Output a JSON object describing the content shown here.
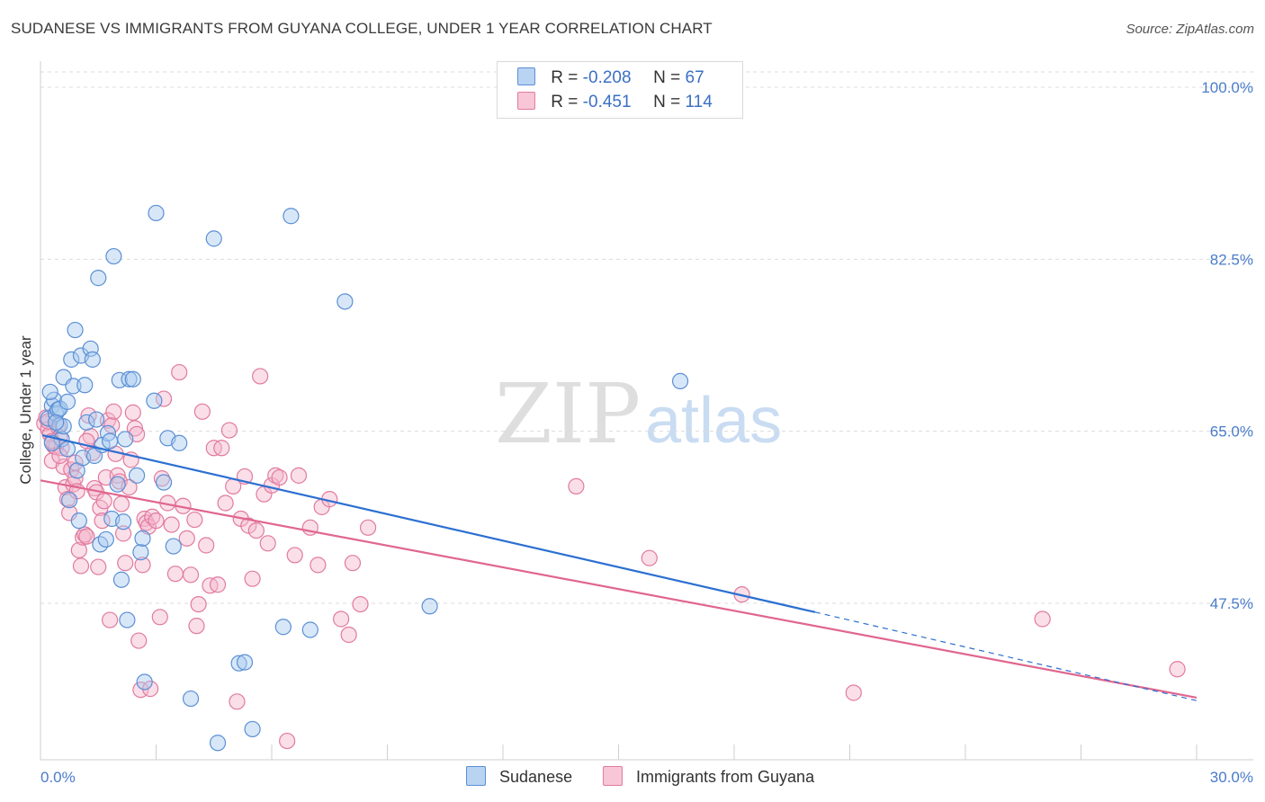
{
  "header": {
    "title": "SUDANESE VS IMMIGRANTS FROM GUYANA COLLEGE, UNDER 1 YEAR CORRELATION CHART",
    "source": "Source: ZipAtlas.com"
  },
  "legend": {
    "rows": [
      {
        "r_label": "R =",
        "r_value": "-0.208",
        "n_label": "N =",
        "n_value": "67"
      },
      {
        "r_label": "R =",
        "r_value": "-0.451",
        "n_label": "N =",
        "n_value": "114"
      }
    ]
  },
  "watermark": {
    "zip": "ZIP",
    "atlas": "atlas"
  },
  "colors": {
    "sudanese_fill": "#a9c9ee",
    "sudanese_stroke": "#5b8fd6",
    "sudanese_line": "#2b6fd1",
    "guyana_fill": "#f5b8cc",
    "guyana_stroke": "#e17aa0",
    "guyana_line": "#e0668f",
    "tick_text": "#4a7cc9",
    "grid": "#dcdcdc"
  },
  "chart_data": {
    "type": "scatter",
    "title": "SUDANESE VS IMMIGRANTS FROM GUYANA COLLEGE, UNDER 1 YEAR CORRELATION CHART",
    "xlabel": "",
    "ylabel": "College, Under 1 year",
    "xlim": [
      0,
      30
    ],
    "ylim": [
      30,
      100
    ],
    "x_tick_labels": [
      "0.0%",
      "30.0%"
    ],
    "y_tick_values": [
      47.5,
      65.0,
      82.5,
      100.0
    ],
    "y_tick_labels": [
      "47.5%",
      "65.0%",
      "82.5%",
      "100.0%"
    ],
    "grid": true,
    "legend_placement": "bottom",
    "series": [
      {
        "name": "Sudanese",
        "r": -0.208,
        "n": 67,
        "trend": {
          "x0": 0.05,
          "y0": 64.6,
          "x1": 20.1,
          "y1": 46.6,
          "dashed_to_x": 30.0,
          "dashed_to_y": 37.6
        },
        "points": [
          [
            0.2,
            66.3
          ],
          [
            0.3,
            67.6
          ],
          [
            0.35,
            68.2
          ],
          [
            0.4,
            66.8
          ],
          [
            0.45,
            67.2
          ],
          [
            0.5,
            67.3
          ],
          [
            0.6,
            70.5
          ],
          [
            0.7,
            68.0
          ],
          [
            0.5,
            65.6
          ],
          [
            0.55,
            64.2
          ],
          [
            0.25,
            69.0
          ],
          [
            0.3,
            63.8
          ],
          [
            0.6,
            65.5
          ],
          [
            0.7,
            63.2
          ],
          [
            0.75,
            58.0
          ],
          [
            0.8,
            72.3
          ],
          [
            0.85,
            69.6
          ],
          [
            0.9,
            75.3
          ],
          [
            0.95,
            61.0
          ],
          [
            1.0,
            55.9
          ],
          [
            1.05,
            72.7
          ],
          [
            1.1,
            62.3
          ],
          [
            1.15,
            69.7
          ],
          [
            1.2,
            65.9
          ],
          [
            1.3,
            73.4
          ],
          [
            1.35,
            72.3
          ],
          [
            1.4,
            62.5
          ],
          [
            1.45,
            66.2
          ],
          [
            1.5,
            80.6
          ],
          [
            1.55,
            53.5
          ],
          [
            1.6,
            63.6
          ],
          [
            1.7,
            54.0
          ],
          [
            1.75,
            64.8
          ],
          [
            1.8,
            64.0
          ],
          [
            1.85,
            56.1
          ],
          [
            1.9,
            82.8
          ],
          [
            2.0,
            59.6
          ],
          [
            2.05,
            70.2
          ],
          [
            2.1,
            49.9
          ],
          [
            2.15,
            55.8
          ],
          [
            2.2,
            64.2
          ],
          [
            2.25,
            45.8
          ],
          [
            2.3,
            70.3
          ],
          [
            2.4,
            70.3
          ],
          [
            2.5,
            60.5
          ],
          [
            2.6,
            52.7
          ],
          [
            2.65,
            54.1
          ],
          [
            2.7,
            39.5
          ],
          [
            2.95,
            68.1
          ],
          [
            3.0,
            87.2
          ],
          [
            3.2,
            59.8
          ],
          [
            3.3,
            64.3
          ],
          [
            3.45,
            53.3
          ],
          [
            3.6,
            63.8
          ],
          [
            3.9,
            37.8
          ],
          [
            4.5,
            84.6
          ],
          [
            4.6,
            33.3
          ],
          [
            5.15,
            41.4
          ],
          [
            5.3,
            41.5
          ],
          [
            5.5,
            34.7
          ],
          [
            6.3,
            45.1
          ],
          [
            6.5,
            86.9
          ],
          [
            7.0,
            44.8
          ],
          [
            7.9,
            78.2
          ],
          [
            10.1,
            47.2
          ],
          [
            16.6,
            70.1
          ],
          [
            0.4,
            65.9
          ]
        ]
      },
      {
        "name": "Immigrants from Guyana",
        "r": -0.451,
        "n": 114,
        "trend": {
          "x0": 0.0,
          "y0": 60.0,
          "x1": 30.0,
          "y1": 37.9
        },
        "points": [
          [
            0.1,
            65.8
          ],
          [
            0.15,
            66.4
          ],
          [
            0.2,
            65.2
          ],
          [
            0.25,
            64.7
          ],
          [
            0.3,
            62.0
          ],
          [
            0.35,
            63.5
          ],
          [
            0.4,
            63.4
          ],
          [
            0.45,
            65.5
          ],
          [
            0.5,
            64.4
          ],
          [
            0.55,
            63.3
          ],
          [
            0.6,
            61.4
          ],
          [
            0.65,
            59.3
          ],
          [
            0.7,
            58.1
          ],
          [
            0.75,
            56.7
          ],
          [
            0.8,
            61.1
          ],
          [
            0.85,
            59.6
          ],
          [
            0.9,
            60.2
          ],
          [
            0.95,
            58.9
          ],
          [
            1.0,
            52.9
          ],
          [
            1.05,
            51.3
          ],
          [
            1.1,
            54.2
          ],
          [
            1.15,
            54.5
          ],
          [
            1.2,
            54.3
          ],
          [
            1.25,
            66.6
          ],
          [
            1.3,
            64.5
          ],
          [
            1.35,
            62.8
          ],
          [
            1.4,
            59.2
          ],
          [
            1.45,
            58.8
          ],
          [
            1.5,
            51.2
          ],
          [
            1.55,
            57.2
          ],
          [
            1.6,
            55.9
          ],
          [
            1.65,
            57.9
          ],
          [
            1.7,
            60.3
          ],
          [
            1.75,
            66.1
          ],
          [
            1.8,
            45.8
          ],
          [
            1.85,
            65.6
          ],
          [
            1.9,
            67.0
          ],
          [
            1.95,
            62.7
          ],
          [
            2.0,
            60.5
          ],
          [
            2.05,
            59.9
          ],
          [
            2.1,
            57.6
          ],
          [
            2.15,
            54.6
          ],
          [
            2.2,
            51.6
          ],
          [
            2.3,
            59.3
          ],
          [
            2.35,
            62.1
          ],
          [
            2.4,
            66.9
          ],
          [
            2.45,
            65.3
          ],
          [
            2.5,
            64.7
          ],
          [
            2.55,
            43.7
          ],
          [
            2.6,
            38.7
          ],
          [
            2.65,
            51.4
          ],
          [
            2.7,
            56.1
          ],
          [
            2.75,
            55.7
          ],
          [
            2.8,
            55.3
          ],
          [
            2.85,
            38.8
          ],
          [
            2.9,
            56.3
          ],
          [
            3.0,
            55.9
          ],
          [
            3.1,
            46.1
          ],
          [
            3.15,
            60.2
          ],
          [
            3.2,
            68.3
          ],
          [
            3.3,
            57.7
          ],
          [
            3.4,
            55.5
          ],
          [
            3.5,
            50.5
          ],
          [
            3.6,
            71.0
          ],
          [
            3.7,
            57.4
          ],
          [
            3.8,
            54.1
          ],
          [
            3.9,
            50.4
          ],
          [
            4.0,
            56.0
          ],
          [
            4.05,
            45.2
          ],
          [
            4.1,
            47.4
          ],
          [
            4.2,
            67.0
          ],
          [
            4.3,
            53.4
          ],
          [
            4.4,
            49.3
          ],
          [
            4.5,
            63.3
          ],
          [
            4.6,
            49.4
          ],
          [
            4.7,
            63.3
          ],
          [
            4.8,
            57.7
          ],
          [
            4.9,
            65.1
          ],
          [
            5.0,
            59.4
          ],
          [
            5.1,
            37.5
          ],
          [
            5.2,
            56.1
          ],
          [
            5.3,
            60.4
          ],
          [
            5.4,
            55.4
          ],
          [
            5.5,
            50.0
          ],
          [
            5.6,
            54.9
          ],
          [
            5.7,
            70.6
          ],
          [
            5.8,
            58.6
          ],
          [
            5.9,
            53.6
          ],
          [
            6.0,
            59.5
          ],
          [
            6.1,
            60.5
          ],
          [
            6.2,
            60.3
          ],
          [
            6.4,
            33.5
          ],
          [
            6.6,
            52.4
          ],
          [
            6.7,
            60.5
          ],
          [
            7.0,
            55.2
          ],
          [
            7.2,
            51.4
          ],
          [
            7.3,
            57.3
          ],
          [
            7.5,
            58.1
          ],
          [
            7.8,
            45.9
          ],
          [
            8.0,
            44.3
          ],
          [
            8.1,
            51.6
          ],
          [
            8.3,
            47.4
          ],
          [
            8.5,
            55.2
          ],
          [
            13.9,
            59.4
          ],
          [
            15.8,
            52.1
          ],
          [
            18.2,
            48.4
          ],
          [
            21.1,
            38.4
          ],
          [
            26.0,
            45.9
          ],
          [
            29.5,
            40.8
          ],
          [
            0.2,
            66.0
          ],
          [
            0.3,
            64.0
          ],
          [
            0.5,
            62.5
          ],
          [
            0.9,
            61.8
          ],
          [
            1.2,
            64.0
          ]
        ]
      }
    ]
  },
  "bottom_legend": {
    "items": [
      "Sudanese",
      "Immigrants from Guyana"
    ]
  }
}
